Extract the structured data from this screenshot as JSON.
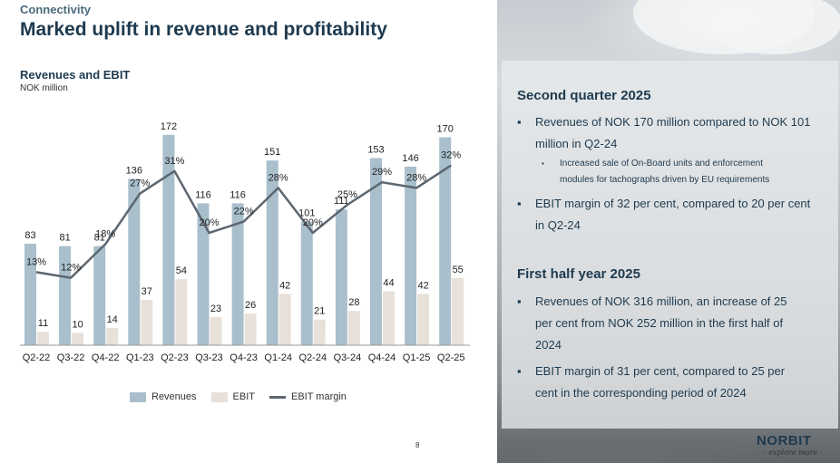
{
  "header": {
    "section": "Connectivity",
    "title": "Marked uplift in revenue and profitability"
  },
  "chart_title": "Revenues and EBIT",
  "chart_subtitle": "NOK million",
  "colors": {
    "revenue": "#a9bfcc",
    "ebit": "#e8e1d9",
    "margin": "#5c6670",
    "text": "#1e3a4f"
  },
  "chart_data": {
    "type": "bar",
    "categories": [
      "Q2-22",
      "Q3-22",
      "Q4-22",
      "Q1-23",
      "Q2-23",
      "Q3-23",
      "Q4-23",
      "Q1-24",
      "Q2-24",
      "Q3-24",
      "Q4-24",
      "Q1-25",
      "Q2-25"
    ],
    "series": [
      {
        "name": "Revenues",
        "type": "bar",
        "values": [
          83,
          81,
          81,
          136,
          172,
          116,
          116,
          151,
          101,
          111,
          153,
          146,
          170
        ]
      },
      {
        "name": "EBIT",
        "type": "bar",
        "values": [
          11,
          10,
          14,
          37,
          54,
          23,
          26,
          42,
          21,
          28,
          44,
          42,
          55
        ]
      },
      {
        "name": "EBIT margin",
        "type": "line",
        "values": [
          13,
          12,
          18,
          27,
          31,
          20,
          22,
          28,
          20,
          25,
          29,
          28,
          32
        ],
        "unit": "%"
      }
    ],
    "legend_position": "bottom",
    "grid": false
  },
  "legend": {
    "revenues": "Revenues",
    "ebit": "EBIT",
    "margin": "EBIT margin"
  },
  "right": {
    "q2_heading": "Second quarter 2025",
    "q2_b1_line1": "Revenues of NOK 170 million compared to NOK 101",
    "q2_b1_line2": "million in Q2-24",
    "q2_sub_line1": "Increased sale of On-Board units and enforcement",
    "q2_sub_line2": "modules for tachographs driven by EU requirements",
    "q2_b2_line1": "EBIT margin of 32 per cent, compared to 20 per cent",
    "q2_b2_line2": "in Q2-24",
    "h1_heading": "First half year 2025",
    "h1_b1_line1": "Revenues of NOK 316 million, an increase of 25",
    "h1_b1_line2": "per cent from NOK 252 million in the first half of",
    "h1_b1_line3": "2024",
    "h1_b2_line1": "EBIT margin of 31 per cent, compared to 25 per",
    "h1_b2_line2": "cent in the corresponding period of 2024",
    "bullet": "▪",
    "logo": "NORBIT",
    "tagline": "- explore more -"
  },
  "page_number": "8"
}
